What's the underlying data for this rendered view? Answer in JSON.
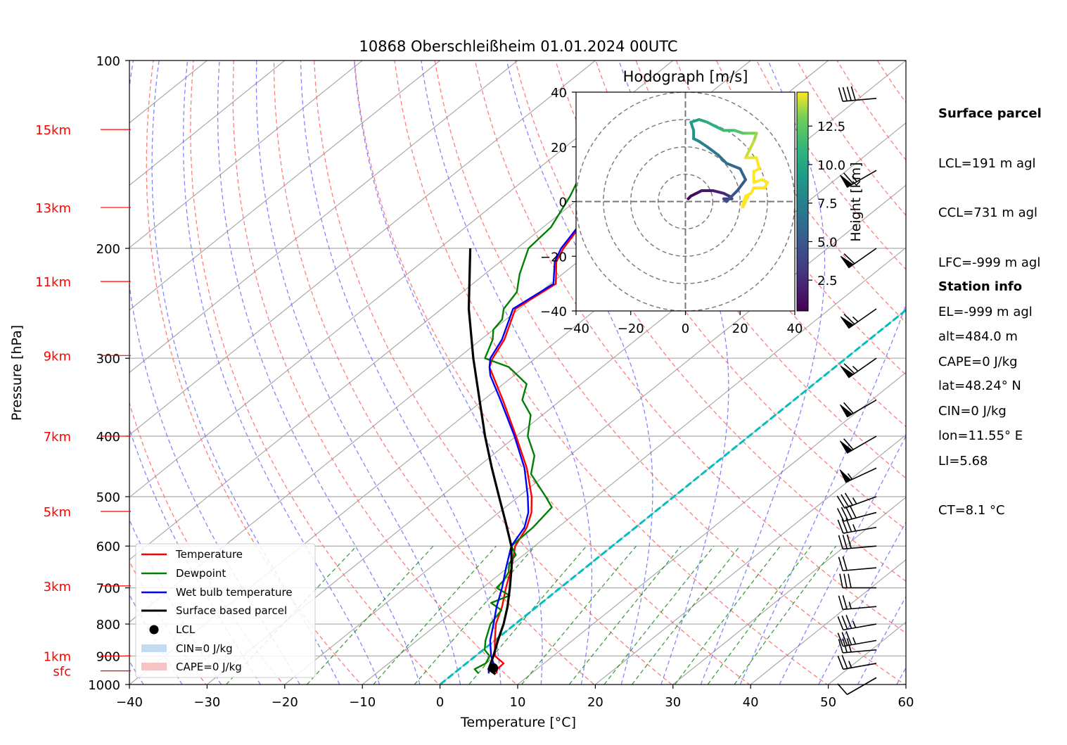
{
  "chart_data": {
    "type": "line",
    "title": "10868 Oberschleißheim 01.01.2024 00UTC",
    "xlabel": "Temperature [°C]",
    "ylabel": "Pressure [hPa]",
    "xlim": [
      -40,
      60
    ],
    "ylim": [
      1000,
      100
    ],
    "y_scale": "log",
    "x_ticks": [
      "−40",
      "−30",
      "−20",
      "−10",
      "0",
      "10",
      "20",
      "30",
      "40",
      "50",
      "60"
    ],
    "y_ticks": [
      {
        "p": 100,
        "label": "100"
      },
      {
        "p": 200,
        "label": "200"
      },
      {
        "p": 300,
        "label": "300"
      },
      {
        "p": 400,
        "label": "400"
      },
      {
        "p": 500,
        "label": "500"
      },
      {
        "p": 600,
        "label": "600"
      },
      {
        "p": 700,
        "label": "700"
      },
      {
        "p": 800,
        "label": "800"
      },
      {
        "p": 900,
        "label": "900"
      },
      {
        "p": 1000,
        "label": "1000"
      }
    ],
    "height_labels": [
      {
        "label": "15km",
        "p": 129
      },
      {
        "label": "13km",
        "p": 172
      },
      {
        "label": "11km",
        "p": 226
      },
      {
        "label": "9km",
        "p": 297
      },
      {
        "label": "7km",
        "p": 400
      },
      {
        "label": "5km",
        "p": 528
      },
      {
        "label": "3km",
        "p": 695
      },
      {
        "label": "1km",
        "p": 900
      },
      {
        "label": "sfc",
        "p": 951
      }
    ],
    "legend_position": "lower-left",
    "series": [
      {
        "name": "Temperature",
        "color": "#ff0000",
        "points": [
          [
            960,
            5.5
          ],
          [
            945,
            4.9
          ],
          [
            925,
            4.8
          ],
          [
            900,
            2.5
          ],
          [
            850,
            0.0
          ],
          [
            800,
            -2.5
          ],
          [
            750,
            -4.5
          ],
          [
            700,
            -7.0
          ],
          [
            650,
            -9.5
          ],
          [
            600,
            -12.5
          ],
          [
            560,
            -14.0
          ],
          [
            530,
            -15.8
          ],
          [
            500,
            -18.3
          ],
          [
            450,
            -23.5
          ],
          [
            400,
            -30.0
          ],
          [
            350,
            -37.5
          ],
          [
            310,
            -44.5
          ],
          [
            300,
            -45.5
          ],
          [
            280,
            -47.0
          ],
          [
            250,
            -50.5
          ],
          [
            228,
            -49.3
          ],
          [
            210,
            -52.8
          ],
          [
            200,
            -54.0
          ],
          [
            180,
            -55.8
          ],
          [
            165,
            -56.5
          ],
          [
            155,
            -60.0
          ],
          [
            145,
            -61.0
          ],
          [
            130,
            -61.0
          ],
          [
            120,
            -63.0
          ],
          [
            115,
            -64.5
          ]
        ]
      },
      {
        "name": "Dewpoint",
        "color": "#008000",
        "points": [
          [
            960,
            3.2
          ],
          [
            945,
            2.0
          ],
          [
            925,
            2.5
          ],
          [
            900,
            1.8
          ],
          [
            880,
            0.2
          ],
          [
            850,
            -1.2
          ],
          [
            800,
            -3.2
          ],
          [
            760,
            -4.0
          ],
          [
            740,
            -6.5
          ],
          [
            720,
            -5.3
          ],
          [
            700,
            -8.2
          ],
          [
            680,
            -8.5
          ],
          [
            660,
            -9.2
          ],
          [
            640,
            -10.5
          ],
          [
            620,
            -11.0
          ],
          [
            600,
            -13.0
          ],
          [
            560,
            -13.2
          ],
          [
            520,
            -14.0
          ],
          [
            500,
            -16.5
          ],
          [
            460,
            -22.0
          ],
          [
            430,
            -24.5
          ],
          [
            400,
            -28.5
          ],
          [
            370,
            -31.5
          ],
          [
            350,
            -35.0
          ],
          [
            330,
            -37.0
          ],
          [
            310,
            -42.0
          ],
          [
            300,
            -46.5
          ],
          [
            280,
            -48.5
          ],
          [
            270,
            -50.0
          ],
          [
            260,
            -50.5
          ],
          [
            250,
            -52.0
          ],
          [
            235,
            -53.0
          ],
          [
            220,
            -55.5
          ],
          [
            200,
            -58.5
          ],
          [
            185,
            -59.0
          ],
          [
            165,
            -61.5
          ],
          [
            150,
            -64.0
          ],
          [
            140,
            -67.5
          ],
          [
            130,
            -70.5
          ],
          [
            120,
            -73.0
          ],
          [
            115,
            -73.5
          ]
        ]
      },
      {
        "name": "Wet bulb temperature",
        "color": "#0000ff",
        "points": [
          [
            960,
            4.5
          ],
          [
            945,
            3.8
          ],
          [
            925,
            3.5
          ],
          [
            900,
            2.0
          ],
          [
            850,
            -0.6
          ],
          [
            800,
            -2.8
          ],
          [
            750,
            -5.2
          ],
          [
            700,
            -7.5
          ],
          [
            650,
            -10.2
          ],
          [
            600,
            -13.0
          ],
          [
            560,
            -14.3
          ],
          [
            530,
            -16.2
          ],
          [
            500,
            -18.8
          ],
          [
            450,
            -23.8
          ],
          [
            400,
            -30.2
          ],
          [
            350,
            -37.8
          ],
          [
            320,
            -43.0
          ],
          [
            310,
            -44.5
          ],
          [
            300,
            -45.8
          ],
          [
            280,
            -47.3
          ],
          [
            250,
            -50.8
          ],
          [
            228,
            -49.6
          ],
          [
            210,
            -53.0
          ],
          [
            200,
            -54.3
          ],
          [
            180,
            -56.0
          ],
          [
            165,
            -56.8
          ],
          [
            155,
            -60.2
          ],
          [
            145,
            -61.3
          ],
          [
            130,
            -61.3
          ],
          [
            120,
            -63.2
          ],
          [
            115,
            -64.7
          ]
        ]
      },
      {
        "name": "Surface based parcel",
        "color": "#000000",
        "points": [
          [
            963,
            5.5
          ],
          [
            945,
            3.8
          ],
          [
            900,
            2.3
          ],
          [
            850,
            0.4
          ],
          [
            800,
            -1.5
          ],
          [
            750,
            -3.8
          ],
          [
            700,
            -6.5
          ],
          [
            650,
            -9.5
          ],
          [
            600,
            -13.0
          ],
          [
            550,
            -17.5
          ],
          [
            500,
            -22.5
          ],
          [
            450,
            -28.0
          ],
          [
            400,
            -34.0
          ],
          [
            350,
            -40.5
          ],
          [
            300,
            -48.0
          ],
          [
            250,
            -56.5
          ],
          [
            200,
            -66.0
          ]
        ]
      }
    ],
    "lcl": {
      "name": "LCL",
      "p": 941,
      "t": 4.2
    },
    "legend_extra": [
      {
        "name": "LCL",
        "kind": "marker",
        "color": "#000000"
      },
      {
        "name": "CIN=0 J/kg",
        "kind": "patch",
        "color": "#c6dbef"
      },
      {
        "name": "CAPE=0 J/kg",
        "kind": "patch",
        "color": "#f4c3c3"
      }
    ],
    "zero_isotherm_color": "#00bfbf",
    "winds": [
      {
        "p": 975,
        "dir": 240,
        "kt": 10
      },
      {
        "p": 925,
        "dir": 260,
        "kt": 25
      },
      {
        "p": 880,
        "dir": 265,
        "kt": 30
      },
      {
        "p": 850,
        "dir": 260,
        "kt": 35
      },
      {
        "p": 800,
        "dir": 260,
        "kt": 35
      },
      {
        "p": 750,
        "dir": 265,
        "kt": 25
      },
      {
        "p": 700,
        "dir": 270,
        "kt": 30
      },
      {
        "p": 650,
        "dir": 265,
        "kt": 20
      },
      {
        "p": 600,
        "dir": 265,
        "kt": 30
      },
      {
        "p": 560,
        "dir": 260,
        "kt": 35
      },
      {
        "p": 530,
        "dir": 255,
        "kt": 40
      },
      {
        "p": 500,
        "dir": 250,
        "kt": 35
      },
      {
        "p": 450,
        "dir": 245,
        "kt": 55
      },
      {
        "p": 400,
        "dir": 240,
        "kt": 60
      },
      {
        "p": 350,
        "dir": 240,
        "kt": 60
      },
      {
        "p": 300,
        "dir": 235,
        "kt": 65
      },
      {
        "p": 250,
        "dir": 235,
        "kt": 65
      },
      {
        "p": 200,
        "dir": 235,
        "kt": 60
      },
      {
        "p": 150,
        "dir": 240,
        "kt": 65
      },
      {
        "p": 115,
        "dir": 265,
        "kt": 40
      }
    ],
    "hodograph": {
      "title": "Hodograph [m/s]",
      "lim": [
        -40,
        40
      ],
      "ticks": [
        "−40",
        "−20",
        "0",
        "20",
        "40"
      ],
      "rings": [
        10,
        20,
        30,
        40
      ],
      "colorbar_label": "Height [km]",
      "colorbar_ticks": [
        "2.5",
        "5.0",
        "7.5",
        "10.0",
        "12.5"
      ],
      "colorbar_range": [
        0.5,
        14.7
      ],
      "points": [
        [
          0.5,
          1,
          1
        ],
        [
          0.8,
          2,
          2
        ],
        [
          1.2,
          4,
          3
        ],
        [
          1.5,
          6,
          4
        ],
        [
          2,
          10,
          4
        ],
        [
          2.5,
          14,
          3
        ],
        [
          3,
          16,
          2
        ],
        [
          3.5,
          17,
          1
        ],
        [
          4,
          14,
          1
        ],
        [
          4.5,
          15,
          0
        ],
        [
          5,
          19,
          4
        ],
        [
          5.5,
          22,
          8
        ],
        [
          6,
          20,
          12
        ],
        [
          6.5,
          15,
          14
        ],
        [
          7,
          12,
          17
        ],
        [
          7.5,
          8,
          20
        ],
        [
          8,
          5,
          22
        ],
        [
          8.5,
          3,
          23
        ],
        [
          9,
          3,
          26
        ],
        [
          9.5,
          2,
          29
        ],
        [
          10,
          5,
          30
        ],
        [
          10.5,
          8,
          29
        ],
        [
          11,
          12,
          27
        ],
        [
          11.5,
          14,
          26
        ],
        [
          12,
          18,
          26
        ],
        [
          12.5,
          21,
          25
        ],
        [
          13,
          23,
          25
        ],
        [
          13.5,
          26,
          25
        ],
        [
          14,
          25,
          22
        ],
        [
          14.5,
          22,
          16
        ],
        [
          14.7,
          26,
          16
        ],
        [
          15,
          27,
          12
        ],
        [
          15.3,
          25,
          11
        ],
        [
          15.6,
          25,
          7
        ],
        [
          16,
          28,
          8
        ],
        [
          16.5,
          30,
          7
        ],
        [
          17,
          29,
          5
        ],
        [
          17.5,
          25,
          5
        ],
        [
          18,
          24,
          3
        ],
        [
          18.5,
          22,
          2
        ],
        [
          19,
          21,
          -1
        ],
        [
          19.5,
          21,
          -2
        ],
        [
          20,
          23,
          2
        ]
      ]
    }
  },
  "info": {
    "parcel_title": "Surface parcel",
    "parcel_lines": [
      "LCL=191 m agl",
      "CCL=731 m agl",
      "LFC=-999 m agl",
      "EL=-999 m agl",
      "CAPE=0 J/kg",
      "CIN=0 J/kg",
      "LI=5.68",
      "CT=8.1 °C"
    ],
    "station_title": "Station info",
    "station_lines": [
      "alt=484.0 m",
      "lat=48.24° N",
      "lon=11.55° E"
    ]
  },
  "colors": {
    "isotherm": "#aaaaaa",
    "dry_adiabat": "#ff6666",
    "moist_adiabat": "#6666ff",
    "mixing_ratio": "#008000",
    "height_label": "#ff0000"
  }
}
